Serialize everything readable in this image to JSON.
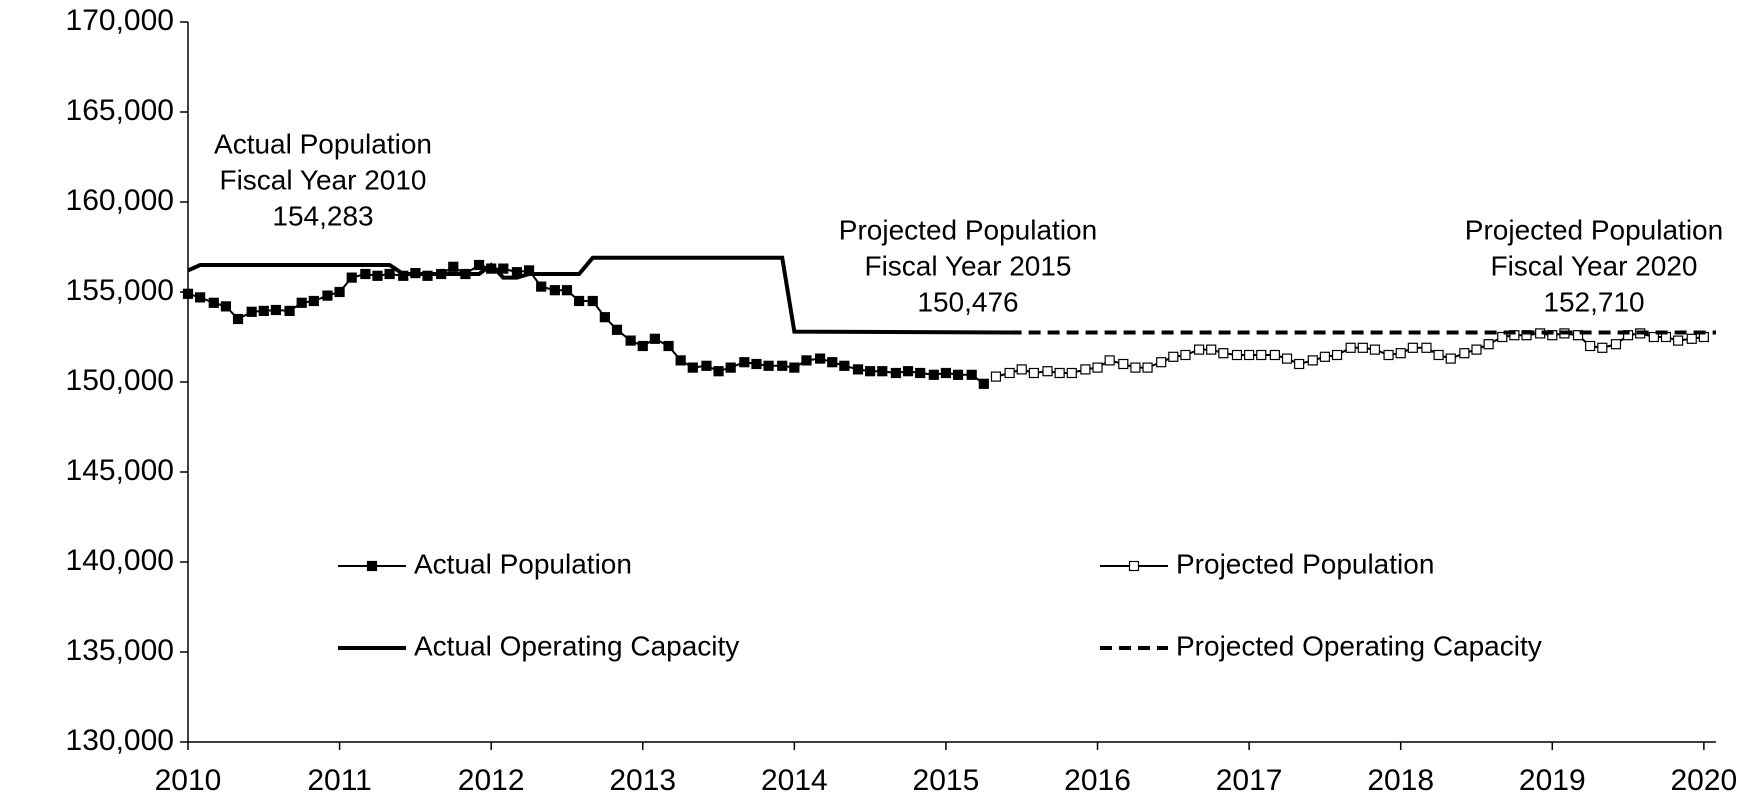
{
  "chart_data": {
    "type": "line",
    "xlim": [
      2010,
      2020.08
    ],
    "xticks": [
      2010,
      2011,
      2012,
      2013,
      2014,
      2015,
      2016,
      2017,
      2018,
      2019,
      2020
    ],
    "ylim": [
      130000,
      170000
    ],
    "yticks": [
      {
        "value": 130000,
        "label": "130,000"
      },
      {
        "value": 135000,
        "label": "135,000"
      },
      {
        "value": 140000,
        "label": "140,000"
      },
      {
        "value": 145000,
        "label": "145,000"
      },
      {
        "value": 150000,
        "label": "150,000"
      },
      {
        "value": 155000,
        "label": "155,000"
      },
      {
        "value": 160000,
        "label": "160,000"
      },
      {
        "value": 165000,
        "label": "165,000"
      },
      {
        "value": 170000,
        "label": "170,000"
      }
    ],
    "grid": false,
    "series": [
      {
        "name": "Actual Population",
        "color": "#000000",
        "dash": "solid",
        "marker": "filled-square",
        "x": [
          2010,
          2010.08,
          2010.17,
          2010.25,
          2010.33,
          2010.42,
          2010.5,
          2010.58,
          2010.67,
          2010.75,
          2010.83,
          2010.92,
          2011,
          2011.08,
          2011.17,
          2011.25,
          2011.33,
          2011.42,
          2011.5,
          2011.58,
          2011.67,
          2011.75,
          2011.83,
          2011.92,
          2012,
          2012.08,
          2012.17,
          2012.25,
          2012.33,
          2012.42,
          2012.5,
          2012.58,
          2012.67,
          2012.75,
          2012.83,
          2012.92,
          2013,
          2013.08,
          2013.17,
          2013.25,
          2013.33,
          2013.42,
          2013.5,
          2013.58,
          2013.67,
          2013.75,
          2013.83,
          2013.92,
          2014,
          2014.08,
          2014.17,
          2014.25,
          2014.33,
          2014.42,
          2014.5,
          2014.58,
          2014.67,
          2014.75,
          2014.83,
          2014.92,
          2015,
          2015.08,
          2015.17,
          2015.25
        ],
        "values": [
          154900,
          154700,
          154400,
          154200,
          153500,
          153900,
          153950,
          154000,
          153950,
          154400,
          154500,
          154800,
          155000,
          155800,
          156000,
          155900,
          156000,
          155900,
          156050,
          155900,
          156000,
          156400,
          156000,
          156500,
          156300,
          156300,
          156100,
          156200,
          155300,
          155100,
          155100,
          154500,
          154500,
          153600,
          152900,
          152300,
          152000,
          152400,
          152000,
          151200,
          150800,
          150900,
          150600,
          150800,
          151100,
          151000,
          150900,
          150900,
          150800,
          151200,
          151300,
          151100,
          150900,
          150700,
          150600,
          150600,
          150500,
          150600,
          150500,
          150400,
          150500,
          150400,
          150400,
          149900
        ]
      },
      {
        "name": "Projected Population",
        "color": "#000000",
        "dash": "solid",
        "marker": "open-square",
        "x": [
          2015.33,
          2015.42,
          2015.5,
          2015.58,
          2015.67,
          2015.75,
          2015.83,
          2015.92,
          2016,
          2016.08,
          2016.17,
          2016.25,
          2016.33,
          2016.42,
          2016.5,
          2016.58,
          2016.67,
          2016.75,
          2016.83,
          2016.92,
          2017,
          2017.08,
          2017.17,
          2017.25,
          2017.33,
          2017.42,
          2017.5,
          2017.58,
          2017.67,
          2017.75,
          2017.83,
          2017.92,
          2018,
          2018.08,
          2018.17,
          2018.25,
          2018.33,
          2018.42,
          2018.5,
          2018.58,
          2018.67,
          2018.75,
          2018.83,
          2018.92,
          2019,
          2019.08,
          2019.17,
          2019.25,
          2019.33,
          2019.42,
          2019.5,
          2019.58,
          2019.67,
          2019.75,
          2019.83,
          2019.92,
          2020
        ],
        "values": [
          150300,
          150500,
          150700,
          150500,
          150600,
          150500,
          150500,
          150700,
          150800,
          151200,
          151000,
          150800,
          150800,
          151100,
          151400,
          151500,
          151800,
          151800,
          151600,
          151500,
          151500,
          151500,
          151500,
          151300,
          151000,
          151200,
          151400,
          151500,
          151900,
          151900,
          151800,
          151500,
          151600,
          151900,
          151900,
          151500,
          151300,
          151600,
          151800,
          152100,
          152500,
          152600,
          152600,
          152700,
          152600,
          152700,
          152600,
          152000,
          151900,
          152100,
          152600,
          152700,
          152500,
          152500,
          152300,
          152400,
          152500
        ]
      },
      {
        "name": "Actual Operating Capacity",
        "color": "#000000",
        "dash": "solid",
        "marker": "none",
        "x": [
          2010,
          2010.08,
          2011.33,
          2011.42,
          2011.92,
          2012,
          2012.08,
          2012.17,
          2012.25,
          2012.58,
          2012.67,
          2013.92,
          2014,
          2015.42
        ],
        "values": [
          156200,
          156500,
          156500,
          156000,
          156000,
          156500,
          155800,
          155800,
          156000,
          156000,
          156900,
          156900,
          152800,
          152750
        ]
      },
      {
        "name": "Projected Operating Capacity",
        "color": "#000000",
        "dash": "dashed",
        "marker": "none",
        "x": [
          2015.42,
          2020.08
        ],
        "values": [
          152750,
          152750
        ]
      }
    ],
    "annotations": [
      {
        "lines": [
          "Actual Population",
          "Fiscal Year 2010",
          "154,283"
        ]
      },
      {
        "lines": [
          "Projected Population",
          "Fiscal Year 2015",
          "150,476"
        ]
      },
      {
        "lines": [
          "Projected Population",
          "Fiscal Year 2020",
          "152,710"
        ]
      }
    ]
  }
}
